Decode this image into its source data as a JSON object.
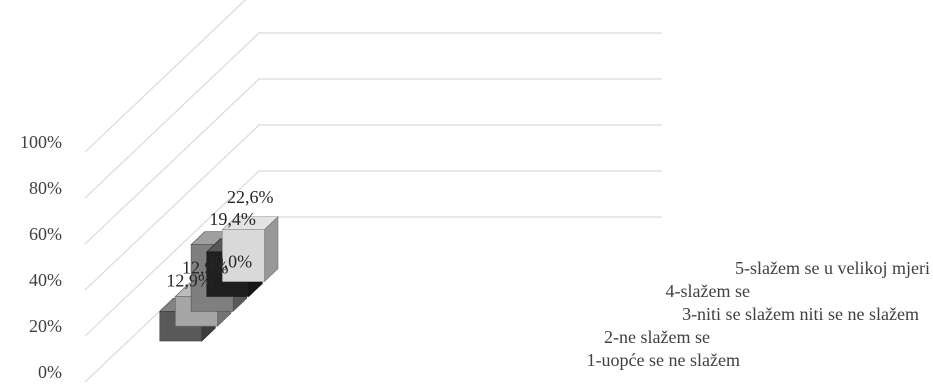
{
  "chart_data": {
    "type": "bar",
    "subtype": "3d-column",
    "title": "",
    "xlabel": "",
    "ylabel": "",
    "ylim": [
      0,
      100
    ],
    "y_ticks": [
      "0%",
      "20%",
      "40%",
      "60%",
      "80%",
      "100%"
    ],
    "grid": true,
    "series": [
      {
        "name": "1-uopće se ne slažem",
        "value": 12.9,
        "label": "12,9%",
        "color": "#595959"
      },
      {
        "name": "2-ne slažem se",
        "value": 12.9,
        "label": "12,9%",
        "color": "#a6a6a6"
      },
      {
        "name": "3-niti se slažem niti se ne slažem",
        "value": 29.0,
        "label": "29,0%",
        "color": "#7f7f7f"
      },
      {
        "name": "4-slažem se",
        "value": 19.4,
        "label": "19,4%",
        "color": "#1f1f1f"
      },
      {
        "name": "5-slažem se u velikoj mjeri",
        "value": 22.6,
        "label": "22,6%",
        "color": "#d9d9d9"
      }
    ]
  }
}
